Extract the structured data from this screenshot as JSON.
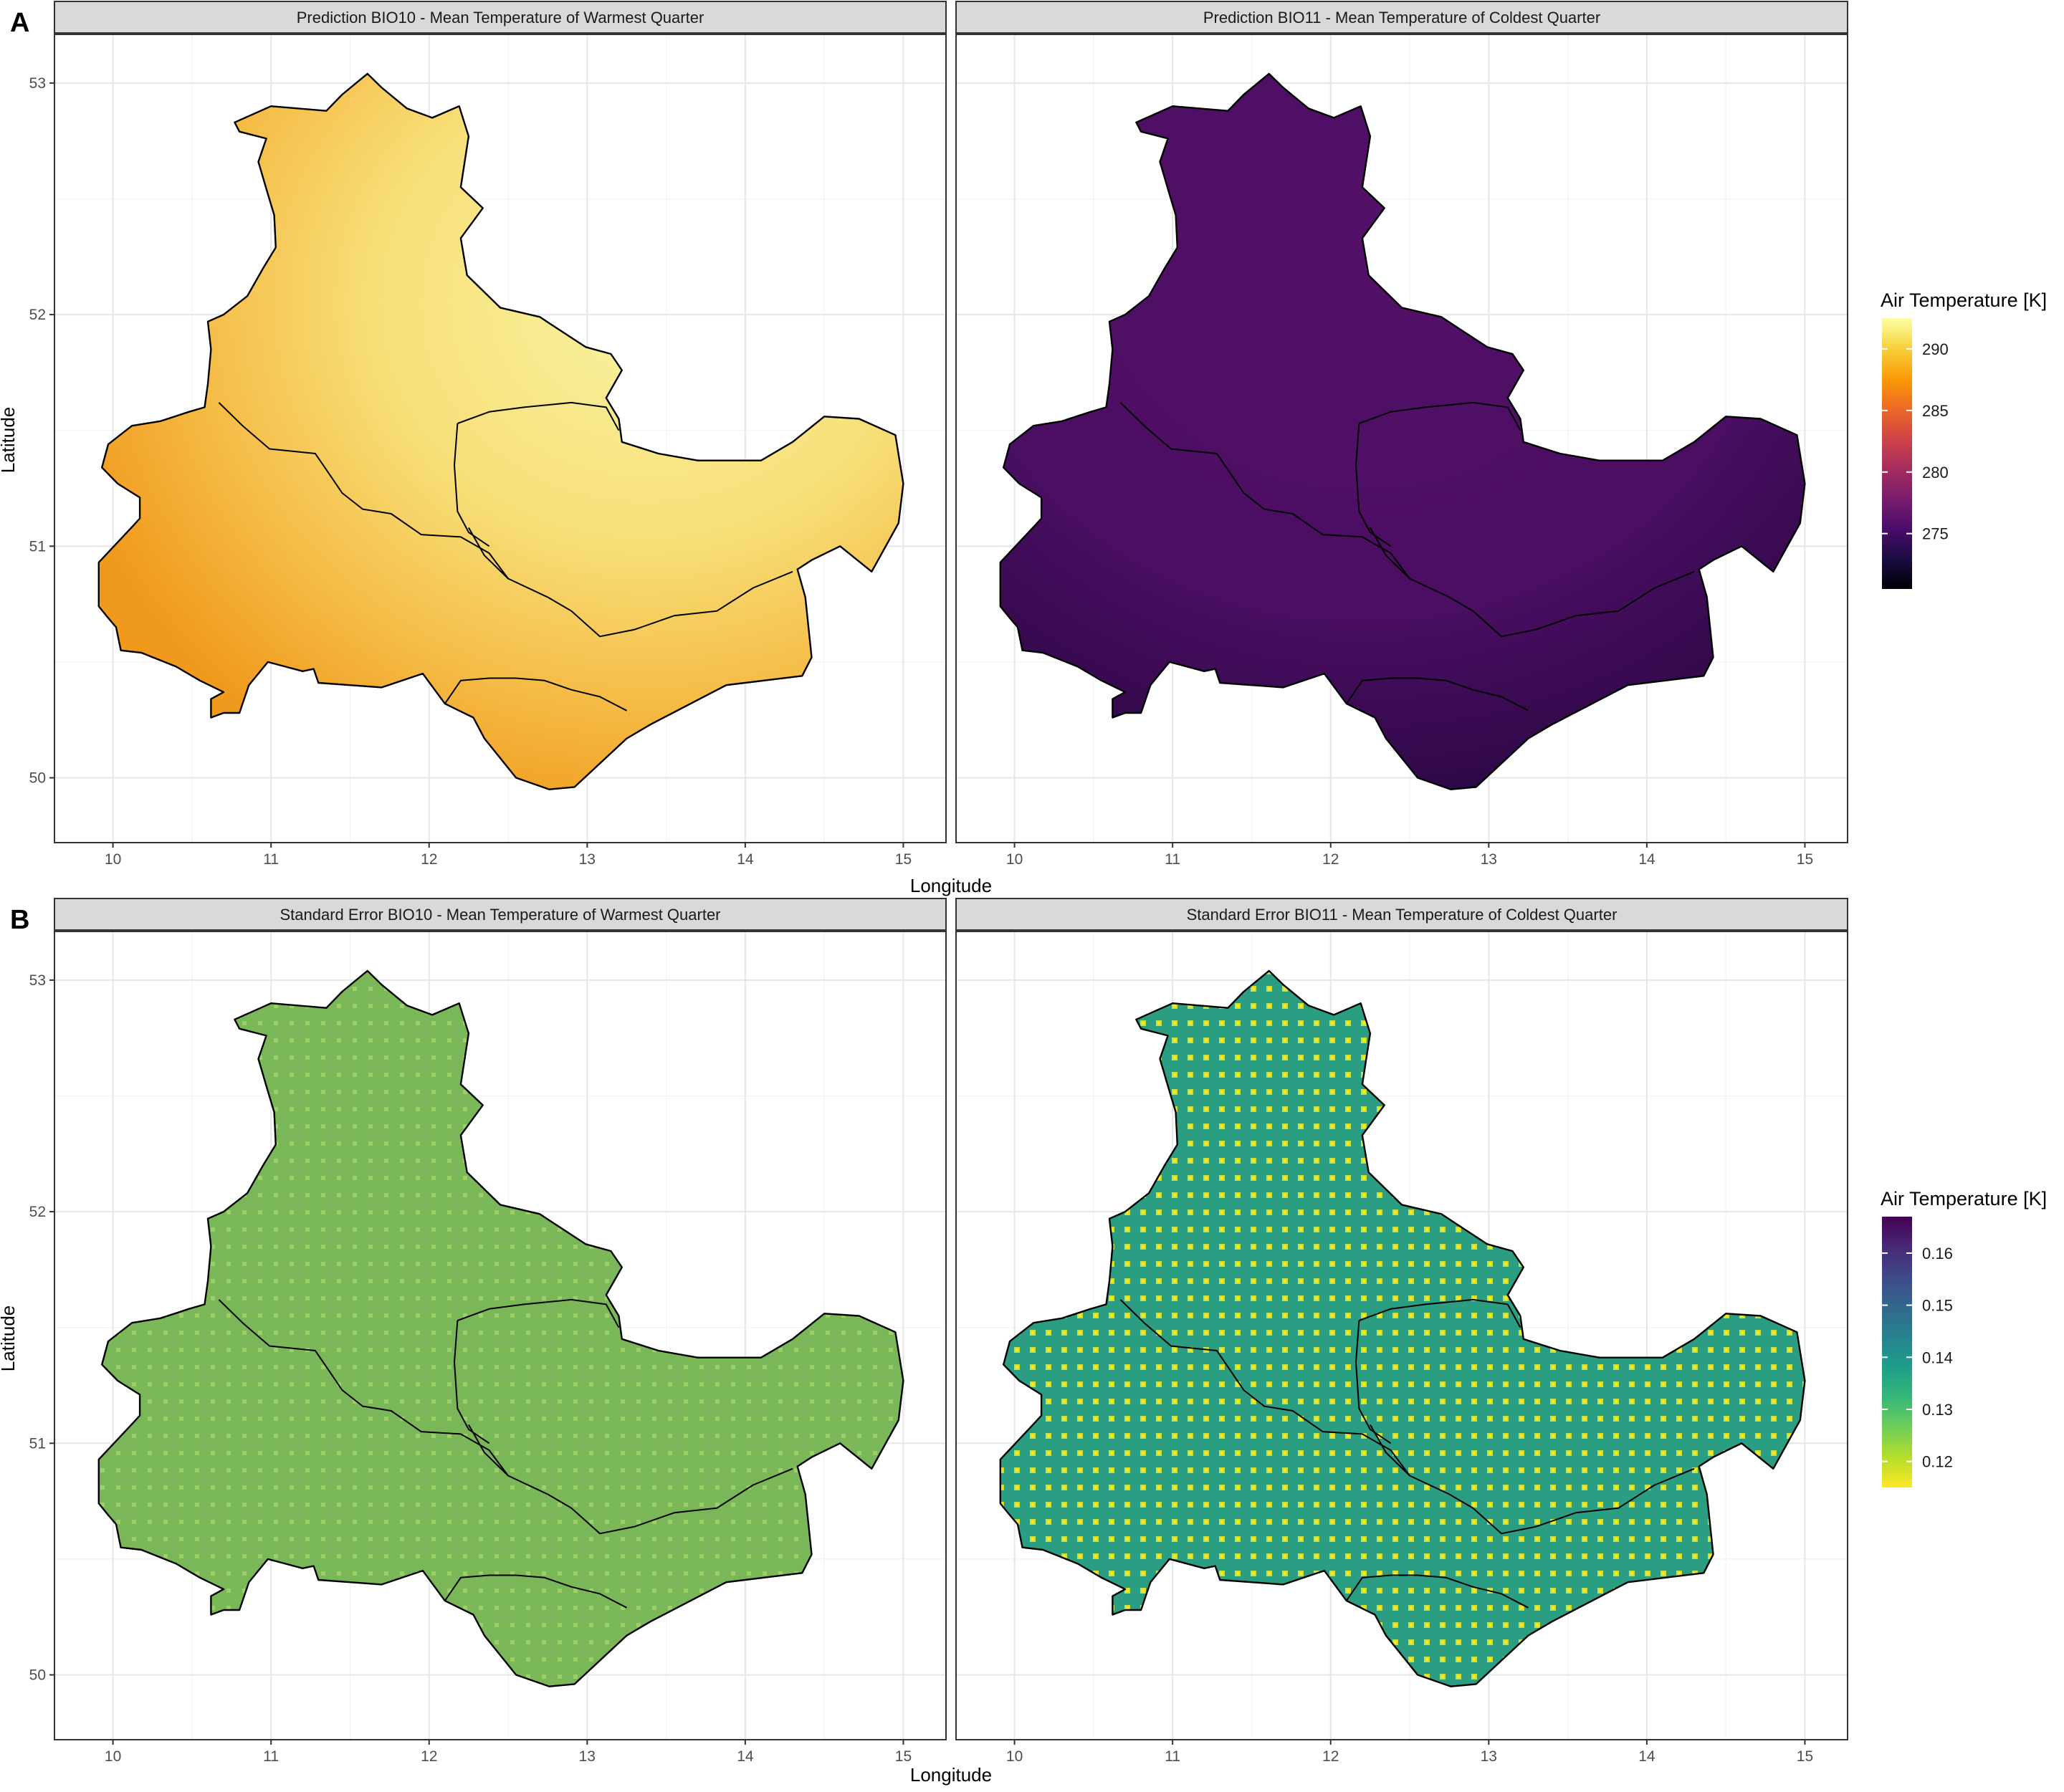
{
  "rows": [
    {
      "letter": "A",
      "xlabel": "Longitude",
      "ylabel": "Latitude",
      "panels": [
        {
          "title": "Prediction BIO10 - Mean Temperature of Warmest Quarter",
          "fill": "warm"
        },
        {
          "title": "Prediction BIO11 - Mean Temperature of Coldest Quarter",
          "fill": "cold"
        }
      ],
      "legend": {
        "title": "Air Temperature [K]",
        "palette": "inferno",
        "min": 270.5,
        "max": 292.5,
        "ticks": [
          275,
          280,
          285,
          290
        ],
        "tick_labels": [
          "275",
          "280",
          "285",
          "290"
        ],
        "colors": [
          "#000004",
          "#1b0c41",
          "#4a0c6b",
          "#781c6d",
          "#a52c60",
          "#cf4446",
          "#ed6925",
          "#fb9b06",
          "#f7d13d",
          "#fcffa4"
        ]
      }
    },
    {
      "letter": "B",
      "xlabel": "Longitude",
      "ylabel": "Latitude",
      "panels": [
        {
          "title": "Standard Error BIO10 - Mean Temperature of Warmest Quarter",
          "fill": "se10"
        },
        {
          "title": "Standard Error BIO11 - Mean Temperature of Coldest Quarter",
          "fill": "se11"
        }
      ],
      "legend": {
        "title": "Air Temperature [K]",
        "palette": "viridis (reversed)",
        "min": 0.115,
        "max": 0.167,
        "ticks": [
          0.12,
          0.13,
          0.14,
          0.15,
          0.16
        ],
        "tick_labels": [
          "0.12",
          "0.13",
          "0.14",
          "0.15",
          "0.16"
        ],
        "colors": [
          "#fde725",
          "#b5de2b",
          "#6ece58",
          "#35b779",
          "#1f9e89",
          "#26828e",
          "#31688e",
          "#3e4989",
          "#482878",
          "#440154"
        ]
      }
    }
  ],
  "x_axis": {
    "range": [
      9.63,
      15.27
    ],
    "ticks": [
      10,
      11,
      12,
      13,
      14,
      15
    ],
    "tick_labels": [
      "10",
      "11",
      "12",
      "13",
      "14",
      "15"
    ]
  },
  "y_axis": {
    "range": [
      49.72,
      53.21
    ],
    "ticks": [
      50,
      51,
      52,
      53
    ],
    "tick_labels": [
      "50",
      "51",
      "52",
      "53"
    ]
  },
  "grid": true,
  "legend_position": "right",
  "region_outline": [
    [
      11.61,
      53.04
    ],
    [
      11.7,
      52.98
    ],
    [
      11.86,
      52.89
    ],
    [
      12.02,
      52.85
    ],
    [
      12.19,
      52.9
    ],
    [
      12.25,
      52.77
    ],
    [
      12.2,
      52.55
    ],
    [
      12.34,
      52.46
    ],
    [
      12.2,
      52.33
    ],
    [
      12.24,
      52.17
    ],
    [
      12.45,
      52.03
    ],
    [
      12.7,
      51.99
    ],
    [
      12.99,
      51.86
    ],
    [
      13.15,
      51.83
    ],
    [
      13.22,
      51.76
    ],
    [
      13.12,
      51.64
    ],
    [
      13.2,
      51.55
    ],
    [
      13.22,
      51.45
    ],
    [
      13.45,
      51.4
    ],
    [
      13.7,
      51.37
    ],
    [
      14.1,
      51.37
    ],
    [
      14.3,
      51.45
    ],
    [
      14.5,
      51.56
    ],
    [
      14.72,
      51.55
    ],
    [
      14.95,
      51.48
    ],
    [
      15.0,
      51.27
    ],
    [
      14.97,
      51.1
    ],
    [
      14.8,
      50.89
    ],
    [
      14.6,
      51.0
    ],
    [
      14.42,
      50.94
    ],
    [
      14.33,
      50.9
    ],
    [
      14.38,
      50.78
    ],
    [
      14.42,
      50.52
    ],
    [
      14.36,
      50.44
    ],
    [
      13.88,
      50.4
    ],
    [
      13.4,
      50.23
    ],
    [
      13.25,
      50.17
    ],
    [
      12.92,
      49.96
    ],
    [
      12.76,
      49.95
    ],
    [
      12.55,
      50.0
    ],
    [
      12.35,
      50.17
    ],
    [
      12.28,
      50.26
    ],
    [
      12.1,
      50.32
    ],
    [
      11.96,
      50.45
    ],
    [
      11.7,
      50.39
    ],
    [
      11.3,
      50.41
    ],
    [
      11.27,
      50.47
    ],
    [
      11.2,
      50.46
    ],
    [
      10.98,
      50.5
    ],
    [
      10.86,
      50.4
    ],
    [
      10.8,
      50.28
    ],
    [
      10.7,
      50.28
    ],
    [
      10.62,
      50.26
    ],
    [
      10.62,
      50.34
    ],
    [
      10.7,
      50.37
    ],
    [
      10.55,
      50.42
    ],
    [
      10.4,
      50.48
    ],
    [
      10.18,
      50.54
    ],
    [
      10.05,
      50.55
    ],
    [
      10.02,
      50.65
    ],
    [
      9.97,
      50.69
    ],
    [
      9.91,
      50.74
    ],
    [
      9.91,
      50.93
    ],
    [
      10.13,
      51.09
    ],
    [
      10.17,
      51.12
    ],
    [
      10.17,
      51.21
    ],
    [
      10.03,
      51.27
    ],
    [
      9.93,
      51.34
    ],
    [
      9.97,
      51.44
    ],
    [
      10.12,
      51.52
    ],
    [
      10.3,
      51.54
    ],
    [
      10.48,
      51.58
    ],
    [
      10.58,
      51.6
    ],
    [
      10.6,
      51.7
    ],
    [
      10.62,
      51.85
    ],
    [
      10.6,
      51.97
    ],
    [
      10.7,
      52.0
    ],
    [
      10.85,
      52.08
    ],
    [
      10.95,
      52.2
    ],
    [
      11.03,
      52.29
    ],
    [
      11.02,
      52.43
    ],
    [
      10.98,
      52.52
    ],
    [
      10.92,
      52.66
    ],
    [
      10.97,
      52.76
    ],
    [
      10.8,
      52.79
    ],
    [
      10.77,
      52.83
    ],
    [
      11.0,
      52.9
    ],
    [
      11.35,
      52.88
    ],
    [
      11.45,
      52.95
    ]
  ],
  "internal_borders": [
    [
      [
        10.67,
        51.62
      ],
      [
        10.82,
        51.52
      ],
      [
        10.99,
        51.42
      ],
      [
        11.28,
        51.4
      ],
      [
        11.38,
        51.3
      ],
      [
        11.45,
        51.23
      ],
      [
        11.58,
        51.16
      ],
      [
        11.76,
        51.14
      ],
      [
        11.95,
        51.05
      ],
      [
        12.2,
        51.04
      ],
      [
        12.38,
        50.97
      ],
      [
        12.5,
        50.86
      ],
      [
        12.75,
        50.78
      ],
      [
        12.9,
        50.72
      ],
      [
        13.08,
        50.61
      ],
      [
        13.3,
        50.64
      ],
      [
        13.55,
        50.7
      ],
      [
        13.82,
        50.72
      ],
      [
        14.05,
        50.82
      ],
      [
        14.3,
        50.89
      ]
    ],
    [
      [
        12.18,
        51.53
      ],
      [
        12.38,
        51.58
      ],
      [
        12.6,
        51.6
      ],
      [
        12.9,
        51.62
      ],
      [
        13.12,
        51.6
      ],
      [
        13.2,
        51.5
      ]
    ],
    [
      [
        12.18,
        51.53
      ],
      [
        12.16,
        51.35
      ],
      [
        12.18,
        51.15
      ],
      [
        12.25,
        51.06
      ],
      [
        12.38,
        51.0
      ]
    ],
    [
      [
        12.25,
        51.08
      ],
      [
        12.35,
        50.96
      ],
      [
        12.5,
        50.86
      ]
    ],
    [
      [
        12.1,
        50.32
      ],
      [
        12.2,
        50.42
      ],
      [
        12.38,
        50.43
      ],
      [
        12.55,
        50.43
      ],
      [
        12.73,
        50.42
      ],
      [
        12.9,
        50.38
      ],
      [
        13.08,
        50.35
      ],
      [
        13.25,
        50.29
      ]
    ]
  ]
}
